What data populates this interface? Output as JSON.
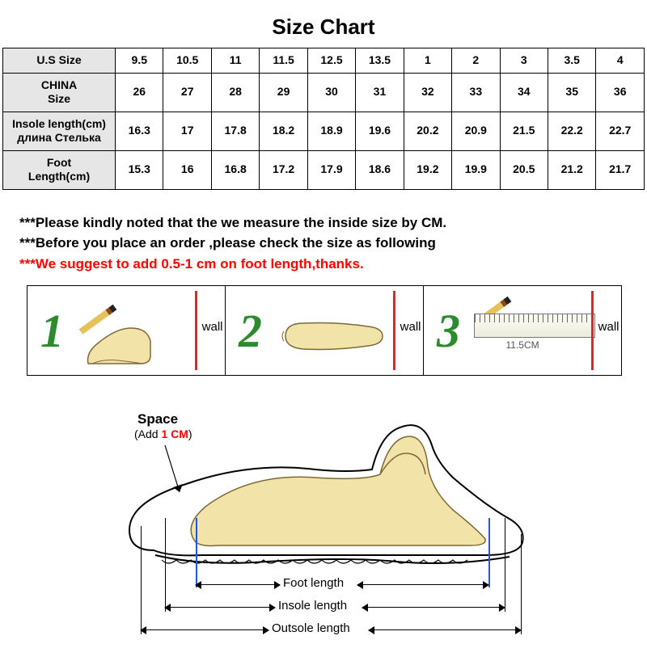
{
  "title": "Size Chart",
  "table": {
    "row_headers": [
      "U.S Size",
      "CHINA\nSize",
      "Insole length(cm)\nдлина Стелька",
      "Foot\nLength(cm)"
    ],
    "rows": [
      [
        "9.5",
        "10.5",
        "11",
        "11.5",
        "12.5",
        "13.5",
        "1",
        "2",
        "3",
        "3.5",
        "4"
      ],
      [
        "26",
        "27",
        "28",
        "29",
        "30",
        "31",
        "32",
        "33",
        "34",
        "35",
        "36"
      ],
      [
        "16.3",
        "17",
        "17.8",
        "18.2",
        "18.9",
        "19.6",
        "20.2",
        "20.9",
        "21.5",
        "22.2",
        "22.7"
      ],
      [
        "15.3",
        "16",
        "16.8",
        "17.2",
        "17.9",
        "18.6",
        "19.2",
        "19.9",
        "20.5",
        "21.2",
        "21.7"
      ]
    ],
    "header_bg": "#e6e6e6",
    "cell_bg": "#ffffff",
    "border_color": "#000000"
  },
  "notes": {
    "line1": "***Please kindly noted that the we measure the inside size by CM.",
    "line2": "***Before you place an order ,please check the size as following",
    "line3": "***We suggest to add 0.5-1 cm on foot length,thanks.",
    "emphasis_color": "#ff0000"
  },
  "steps": {
    "wall_label": "wall",
    "wall_line_color": "#c9302c",
    "number_color": "#2d8a2d",
    "items": [
      {
        "n": "1"
      },
      {
        "n": "2"
      },
      {
        "n": "3",
        "ruler_value": "11.5CM"
      }
    ]
  },
  "diagram": {
    "space_title": "Space",
    "space_sub_prefix": "(Add ",
    "space_sub_value": "1 CM",
    "space_sub_suffix": ")",
    "foot_color": "#f2e3a8",
    "shoe_outline_color": "#000000",
    "guide_blue": "#2258d6",
    "labels": {
      "foot": "Foot length",
      "insole": "Insole length",
      "outsole": "Outsole length"
    }
  }
}
